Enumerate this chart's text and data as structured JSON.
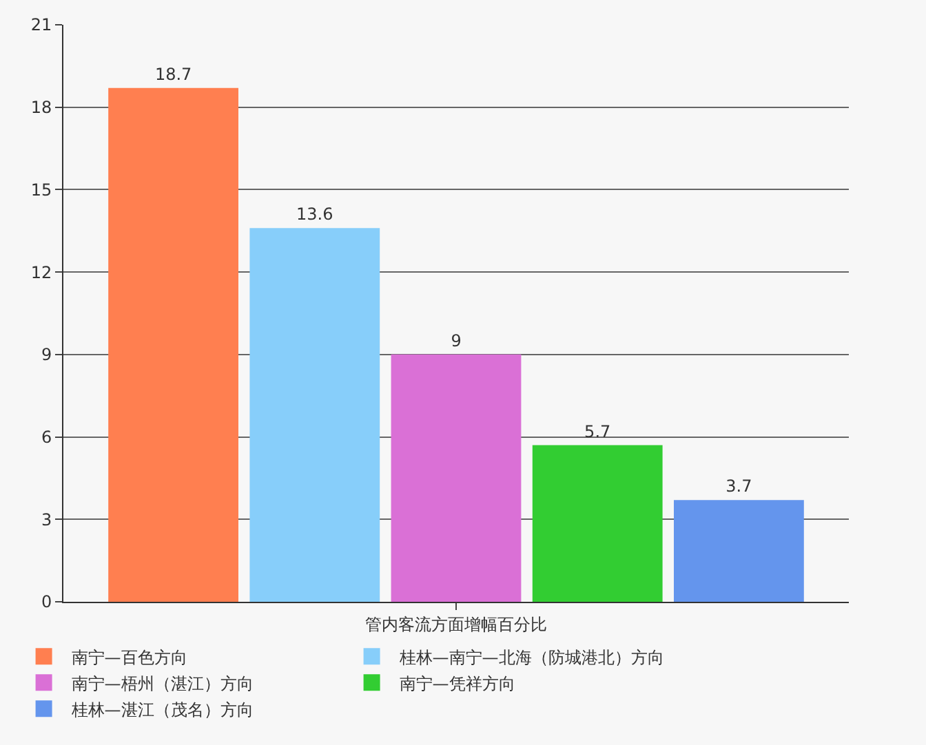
{
  "chart_data": {
    "type": "bar",
    "categories": [
      "管内客流方面增幅百分比"
    ],
    "series": [
      {
        "name": "南宁—百色方向",
        "color": "#ff7f50",
        "values": [
          18.7
        ]
      },
      {
        "name": "桂林—南宁—北海（防城港北）方向",
        "color": "#87cefa",
        "values": [
          13.6
        ]
      },
      {
        "name": "南宁—梧州（湛江）方向",
        "color": "#da70d6",
        "values": [
          9
        ]
      },
      {
        "name": "南宁—凭祥方向",
        "color": "#32cd32",
        "values": [
          5.7
        ]
      },
      {
        "name": "桂林—湛江（茂名）方向",
        "color": "#6495ed",
        "values": [
          3.7
        ]
      }
    ],
    "ylim": [
      0,
      21
    ],
    "yticks": [
      0,
      3,
      6,
      9,
      12,
      15,
      18,
      21
    ],
    "grid": "y",
    "legend": "bottom",
    "data_labels": true
  }
}
